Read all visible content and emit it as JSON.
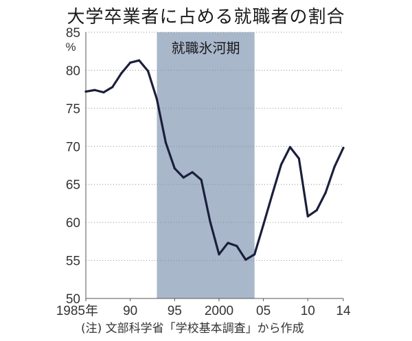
{
  "chart_data": {
    "type": "line",
    "title": "大学卒業者に占める就職者の割合",
    "y_unit": "%",
    "ylim": [
      50,
      85
    ],
    "yticks": [
      50,
      55,
      60,
      65,
      70,
      75,
      80,
      85
    ],
    "xlim": [
      1985,
      2014
    ],
    "xticks": [
      {
        "x": 1985,
        "label": "1985年"
      },
      {
        "x": 1990,
        "label": "90"
      },
      {
        "x": 1995,
        "label": "95"
      },
      {
        "x": 2000,
        "label": "2000"
      },
      {
        "x": 2005,
        "label": "05"
      },
      {
        "x": 2010,
        "label": "10"
      },
      {
        "x": 2014,
        "label": "14"
      }
    ],
    "grid": "horizontal dotted",
    "shaded_region": {
      "label": "就職氷河期",
      "x_start": 1993,
      "x_end": 2004,
      "color": "#a9b7cb"
    },
    "line_color": "#1b1f3b",
    "series": [
      {
        "name": "",
        "x": [
          1985,
          1986,
          1987,
          1988,
          1989,
          1990,
          1991,
          1992,
          1993,
          1994,
          1995,
          1996,
          1997,
          1998,
          1999,
          2000,
          2001,
          2002,
          2003,
          2004,
          2005,
          2006,
          2007,
          2008,
          2009,
          2010,
          2011,
          2012,
          2013,
          2014
        ],
        "values": [
          77.2,
          77.4,
          77.1,
          77.8,
          79.6,
          81.0,
          81.3,
          79.9,
          76.2,
          70.5,
          67.1,
          65.9,
          66.6,
          65.6,
          60.1,
          55.8,
          57.3,
          56.9,
          55.1,
          55.8,
          59.7,
          63.7,
          67.6,
          69.9,
          68.4,
          60.8,
          61.6,
          63.9,
          67.3,
          69.8
        ]
      }
    ]
  },
  "note": "(注) 文部科学省「学校基本調査」から作成"
}
